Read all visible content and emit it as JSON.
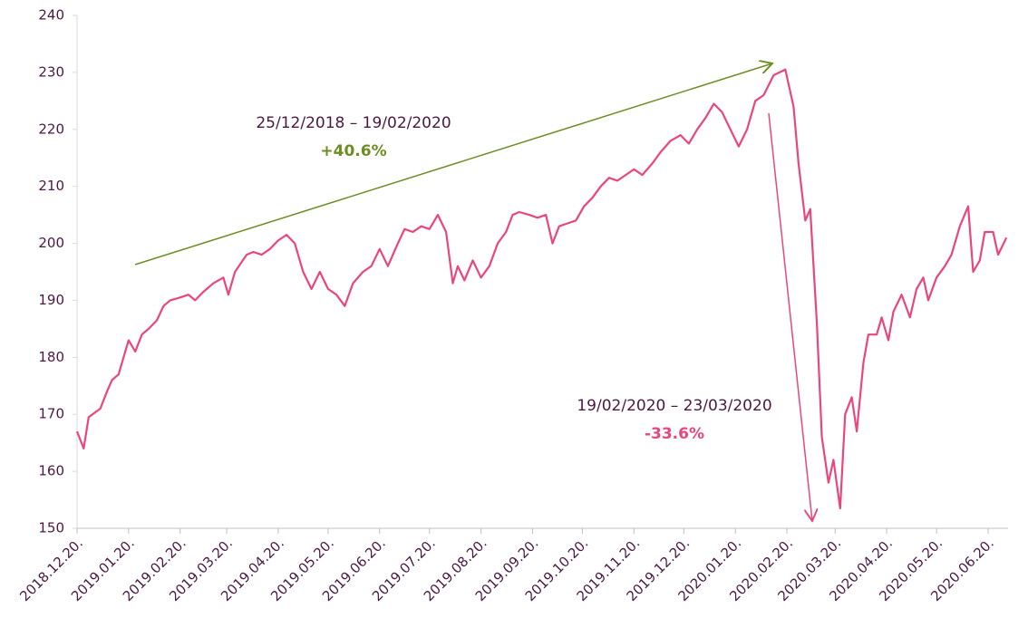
{
  "chart_data": {
    "type": "line",
    "annotations": [
      "25/12/2018 – 19/02/2020",
      "+40.6%",
      "19/02/2020 – 23/03/2020",
      "-33.6%"
    ],
    "x": [
      "2018-12-20",
      "2018-12-24",
      "2018-12-27",
      "2019-01-03",
      "2019-01-07",
      "2019-01-10",
      "2019-01-14",
      "2019-01-17",
      "2019-01-20",
      "2019-01-24",
      "2019-01-28",
      "2019-02-01",
      "2019-02-06",
      "2019-02-10",
      "2019-02-14",
      "2019-02-20",
      "2019-02-25",
      "2019-03-01",
      "2019-03-06",
      "2019-03-12",
      "2019-03-18",
      "2019-03-21",
      "2019-03-25",
      "2019-04-01",
      "2019-04-05",
      "2019-04-10",
      "2019-04-15",
      "2019-04-20",
      "2019-04-25",
      "2019-04-30",
      "2019-05-05",
      "2019-05-10",
      "2019-05-15",
      "2019-05-20",
      "2019-05-25",
      "2019-05-30",
      "2019-06-04",
      "2019-06-10",
      "2019-06-15",
      "2019-06-20",
      "2019-06-25",
      "2019-07-01",
      "2019-07-05",
      "2019-07-10",
      "2019-07-15",
      "2019-07-20",
      "2019-07-25",
      "2019-07-30",
      "2019-08-03",
      "2019-08-06",
      "2019-08-10",
      "2019-08-15",
      "2019-08-20",
      "2019-08-25",
      "2019-08-30",
      "2019-09-04",
      "2019-09-08",
      "2019-09-12",
      "2019-09-18",
      "2019-09-23",
      "2019-09-28",
      "2019-10-02",
      "2019-10-06",
      "2019-10-11",
      "2019-10-16",
      "2019-10-21",
      "2019-10-26",
      "2019-10-31",
      "2019-11-05",
      "2019-11-10",
      "2019-11-15",
      "2019-11-20",
      "2019-11-25",
      "2019-12-01",
      "2019-12-06",
      "2019-12-12",
      "2019-12-18",
      "2019-12-23",
      "2019-12-28",
      "2020-01-02",
      "2020-01-07",
      "2020-01-12",
      "2020-01-17",
      "2020-01-22",
      "2020-01-27",
      "2020-02-01",
      "2020-02-06",
      "2020-02-12",
      "2020-02-19",
      "2020-02-24",
      "2020-02-27",
      "2020-03-02",
      "2020-03-05",
      "2020-03-09",
      "2020-03-12",
      "2020-03-16",
      "2020-03-19",
      "2020-03-23",
      "2020-03-26",
      "2020-03-30",
      "2020-04-02",
      "2020-04-06",
      "2020-04-09",
      "2020-04-14",
      "2020-04-17",
      "2020-04-21",
      "2020-04-24",
      "2020-04-29",
      "2020-05-04",
      "2020-05-08",
      "2020-05-12",
      "2020-05-15",
      "2020-05-20",
      "2020-05-25",
      "2020-05-29",
      "2020-06-03",
      "2020-06-08",
      "2020-06-11",
      "2020-06-15",
      "2020-06-18",
      "2020-06-23",
      "2020-06-26",
      "2020-07-01"
    ],
    "series": [
      {
        "color": "#e8467c",
        "values": [
          167,
          164,
          169.5,
          171,
          174,
          176,
          177,
          180,
          183,
          181,
          184,
          185,
          186.5,
          189,
          190,
          190.5,
          191,
          190,
          191.5,
          193,
          194,
          191,
          195,
          198,
          198.5,
          198,
          199,
          200.5,
          201.5,
          200,
          195,
          192,
          195,
          192,
          191,
          189,
          193,
          195,
          196,
          199,
          196,
          200,
          202.5,
          202,
          203,
          202.5,
          205,
          202,
          193,
          196,
          193.5,
          197,
          194,
          196,
          200,
          202,
          205,
          205.5,
          205,
          204.5,
          205,
          200,
          203,
          203.5,
          204,
          206.5,
          208,
          210,
          211.5,
          211,
          212,
          213,
          212,
          214,
          216,
          218,
          219,
          217.5,
          220,
          222,
          224.5,
          223,
          220,
          217,
          220,
          225,
          226,
          229.5,
          230.5,
          224,
          214,
          204,
          206,
          186,
          166,
          158,
          162,
          153.5,
          170,
          173,
          167,
          179,
          184,
          184,
          187,
          183,
          188,
          191,
          187,
          192,
          194,
          190,
          194,
          196,
          198,
          203,
          206.5,
          195,
          197,
          202,
          202,
          198,
          201
        ]
      }
    ],
    "xlim": [
      "2018-12-20",
      "2020-07-02"
    ],
    "xticks": [
      {
        "value": "2018-12-20",
        "label": "2018.12.20."
      },
      {
        "value": "2019-01-20",
        "label": "2019.01.20."
      },
      {
        "value": "2019-02-20",
        "label": "2019.02.20."
      },
      {
        "value": "2019-03-20",
        "label": "2019.03.20."
      },
      {
        "value": "2019-04-20",
        "label": "2019.04.20."
      },
      {
        "value": "2019-05-20",
        "label": "2019.05.20."
      },
      {
        "value": "2019-06-20",
        "label": "2019.06.20."
      },
      {
        "value": "2019-07-20",
        "label": "2019.07.20."
      },
      {
        "value": "2019-08-20",
        "label": "2019.08.20."
      },
      {
        "value": "2019-09-20",
        "label": "2019.09.20."
      },
      {
        "value": "2019-10-20",
        "label": "2019.10.20."
      },
      {
        "value": "2019-11-20",
        "label": "2019.11.20."
      },
      {
        "value": "2019-12-20",
        "label": "2019.12.20."
      },
      {
        "value": "2020-01-20",
        "label": "2020.01.20."
      },
      {
        "value": "2020-02-20",
        "label": "2020.02.20."
      },
      {
        "value": "2020-03-20",
        "label": "2020.03.20."
      },
      {
        "value": "2020-04-20",
        "label": "2020.04.20."
      },
      {
        "value": "2020-05-20",
        "label": "2020.05.20."
      },
      {
        "value": "2020-06-20",
        "label": "2020.06.20."
      }
    ],
    "ylim": [
      150,
      240
    ],
    "yticks": [
      150,
      160,
      170,
      180,
      190,
      200,
      210,
      220,
      230,
      240
    ]
  }
}
